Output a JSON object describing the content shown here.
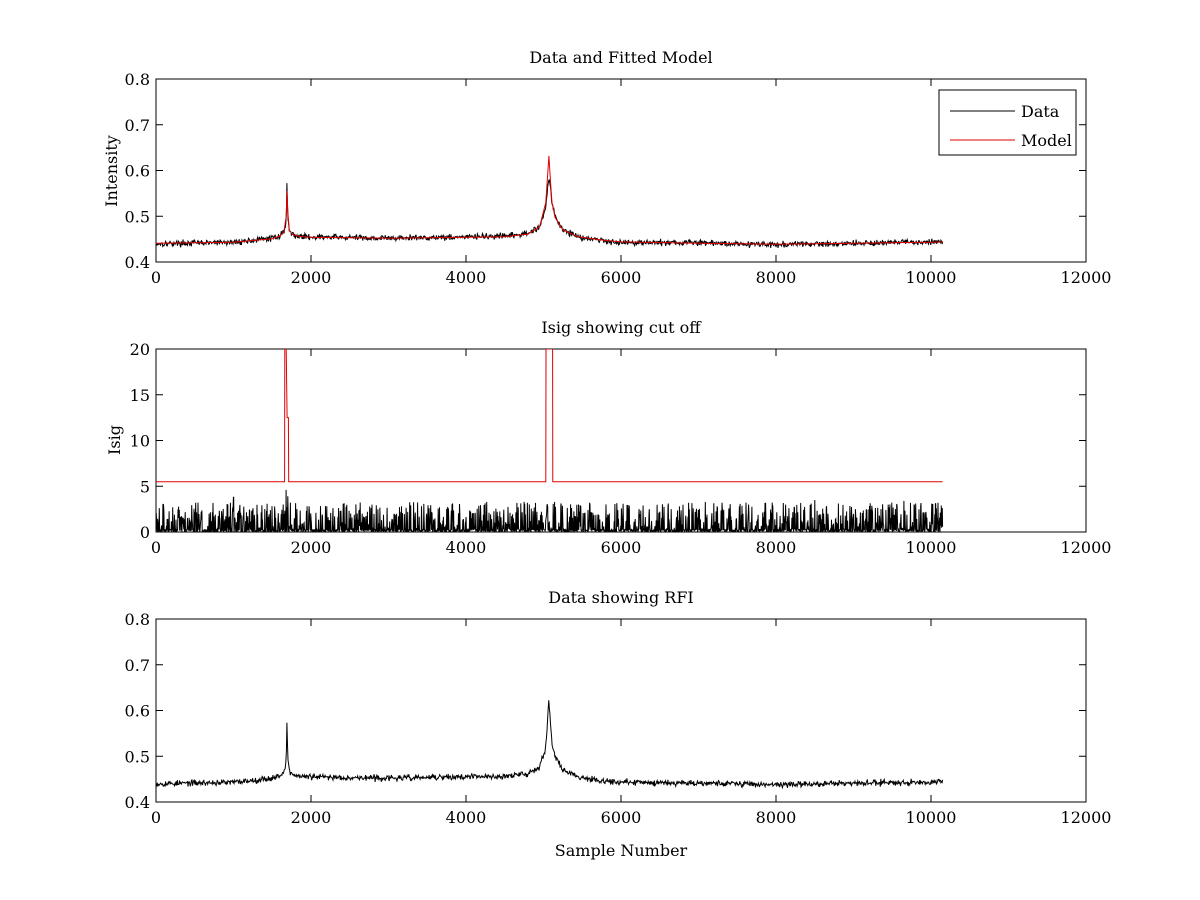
{
  "chart_data": [
    {
      "type": "line",
      "title": "Data and Fitted Model",
      "xlabel": "",
      "ylabel": "Intensity",
      "xlim": [
        0,
        12000
      ],
      "ylim": [
        0.4,
        0.8
      ],
      "xticks": [
        0,
        2000,
        4000,
        6000,
        8000,
        10000,
        12000
      ],
      "yticks": [
        0.4,
        0.5,
        0.6,
        0.7,
        0.8
      ],
      "xtick_labels": [
        "0",
        "2000",
        "4000",
        "6000",
        "8000",
        "10000",
        "12000"
      ],
      "ytick_labels": [
        "0.4",
        "0.5",
        "0.6",
        "0.7",
        "0.8"
      ],
      "legend": {
        "position": "top-right",
        "entries": [
          "Data",
          "Model"
        ]
      },
      "series": [
        {
          "name": "Data",
          "color": "#000000",
          "style": "noisy",
          "x": [
            0,
            1000,
            1500,
            1600,
            1650,
            1680,
            1690,
            1700,
            1720,
            1760,
            1850,
            2000,
            3000,
            4000,
            4500,
            4800,
            4950,
            5030,
            5070,
            5090,
            5110,
            5150,
            5250,
            5450,
            5800,
            6000,
            7000,
            8000,
            9000,
            10000,
            10150
          ],
          "values": [
            0.44,
            0.443,
            0.452,
            0.458,
            0.466,
            0.49,
            0.575,
            0.5,
            0.468,
            0.46,
            0.456,
            0.455,
            0.452,
            0.455,
            0.456,
            0.462,
            0.478,
            0.52,
            0.585,
            0.565,
            0.528,
            0.498,
            0.471,
            0.455,
            0.446,
            0.443,
            0.442,
            0.438,
            0.441,
            0.444,
            0.445
          ],
          "noise_amplitude": 0.004,
          "noise_seed": 17
        },
        {
          "name": "Model",
          "color": "#e00000",
          "style": "smooth",
          "x": [
            0,
            1000,
            1500,
            1600,
            1650,
            1680,
            1690,
            1700,
            1720,
            1760,
            1850,
            2000,
            3000,
            4000,
            4500,
            4800,
            4950,
            5030,
            5070,
            5090,
            5110,
            5150,
            5250,
            5450,
            5800,
            6000,
            7000,
            8000,
            9000,
            10000,
            10150
          ],
          "values": [
            0.441,
            0.443,
            0.451,
            0.457,
            0.466,
            0.5,
            0.555,
            0.51,
            0.47,
            0.46,
            0.456,
            0.454,
            0.452,
            0.454,
            0.455,
            0.461,
            0.477,
            0.53,
            0.632,
            0.575,
            0.53,
            0.497,
            0.47,
            0.455,
            0.447,
            0.444,
            0.441,
            0.439,
            0.441,
            0.443,
            0.444
          ]
        }
      ]
    },
    {
      "type": "line",
      "title": "Isig showing cut off",
      "xlabel": "",
      "ylabel": "Isig",
      "xlim": [
        0,
        12000
      ],
      "ylim": [
        0,
        20
      ],
      "xticks": [
        0,
        2000,
        4000,
        6000,
        8000,
        10000,
        12000
      ],
      "yticks": [
        0,
        5,
        10,
        15,
        20
      ],
      "xtick_labels": [
        "0",
        "2000",
        "4000",
        "6000",
        "8000",
        "10000",
        "12000"
      ],
      "ytick_labels": [
        "0",
        "5",
        "10",
        "15",
        "20"
      ],
      "series": [
        {
          "name": "Isig",
          "color": "#000000",
          "style": "spiky",
          "x": [
            0,
            10150
          ],
          "values": [
            1.0,
            1.0
          ],
          "spike_max": 3.3,
          "noise_seed": 29,
          "extra_spikes": [
            [
              1000,
              3.8
            ],
            [
              1680,
              4.6
            ],
            [
              1700,
              3.9
            ],
            [
              5050,
              3.0
            ],
            [
              8500,
              3.5
            ],
            [
              9650,
              3.4
            ]
          ]
        },
        {
          "name": "Cut off",
          "color": "#e00000",
          "style": "step",
          "x": [
            0,
            1660,
            1662,
            1680,
            1692,
            1708,
            1712,
            5030,
            5032,
            5118,
            5120,
            10150
          ],
          "values": [
            5.5,
            5.5,
            20,
            20,
            12.5,
            12.5,
            5.5,
            5.5,
            20,
            20,
            5.5,
            5.5
          ]
        }
      ]
    },
    {
      "type": "line",
      "title": "Data showing RFI",
      "xlabel": "Sample Number",
      "ylabel": "",
      "xlim": [
        0,
        12000
      ],
      "ylim": [
        0.4,
        0.8
      ],
      "xticks": [
        0,
        2000,
        4000,
        6000,
        8000,
        10000,
        12000
      ],
      "yticks": [
        0.4,
        0.5,
        0.6,
        0.7,
        0.8
      ],
      "xtick_labels": [
        "0",
        "2000",
        "4000",
        "6000",
        "8000",
        "10000",
        "12000"
      ],
      "ytick_labels": [
        "0.4",
        "0.5",
        "0.6",
        "0.7",
        "0.8"
      ],
      "series": [
        {
          "name": "Data",
          "color": "#000000",
          "style": "noisy",
          "x": [
            0,
            1000,
            1500,
            1600,
            1650,
            1680,
            1690,
            1700,
            1720,
            1760,
            1850,
            2000,
            3000,
            4000,
            4500,
            4800,
            4950,
            5030,
            5070,
            5090,
            5110,
            5150,
            5250,
            5450,
            5800,
            6000,
            7000,
            8000,
            9000,
            10000,
            10150
          ],
          "values": [
            0.44,
            0.443,
            0.452,
            0.458,
            0.466,
            0.49,
            0.575,
            0.5,
            0.468,
            0.46,
            0.456,
            0.455,
            0.452,
            0.455,
            0.456,
            0.462,
            0.478,
            0.52,
            0.628,
            0.57,
            0.528,
            0.498,
            0.471,
            0.455,
            0.446,
            0.443,
            0.442,
            0.438,
            0.441,
            0.444,
            0.445
          ],
          "noise_amplitude": 0.004,
          "noise_seed": 53
        }
      ]
    }
  ]
}
